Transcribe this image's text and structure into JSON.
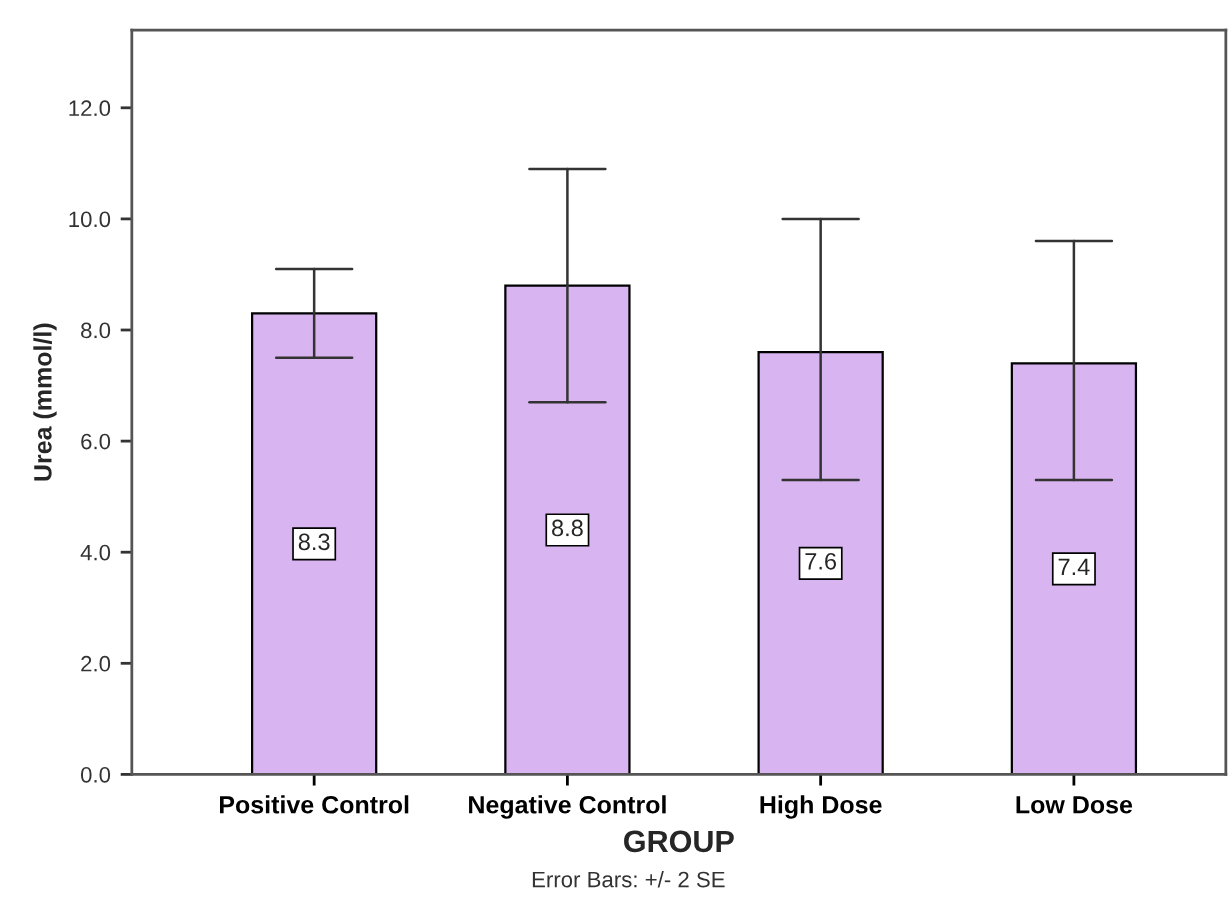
{
  "chart_data": {
    "type": "bar",
    "xlabel": "GROUP",
    "ylabel": "Urea (mmol/l)",
    "categories": [
      "Positive Control",
      "Negative Control",
      "High Dose",
      "Low Dose"
    ],
    "values": [
      8.3,
      8.8,
      7.6,
      7.4
    ],
    "errors": [
      [
        7.5,
        9.1
      ],
      [
        6.7,
        10.9
      ],
      [
        5.3,
        10.0
      ],
      [
        5.3,
        9.6
      ]
    ],
    "color": "#d8b4f0",
    "data_labels": true,
    "ylim": [
      0,
      13.4
    ],
    "yticks": [
      {
        "value": 0,
        "label": "0.0"
      },
      {
        "value": 2,
        "label": "2.0"
      },
      {
        "value": 4,
        "label": "4.0"
      },
      {
        "value": 6,
        "label": "6.0"
      },
      {
        "value": 8,
        "label": "8.0"
      },
      {
        "value": 10,
        "label": "10.0"
      },
      {
        "value": 12,
        "label": "12.0"
      }
    ],
    "grid": false,
    "annotations": [
      "Error Bars: +/- 2 SE"
    ]
  }
}
